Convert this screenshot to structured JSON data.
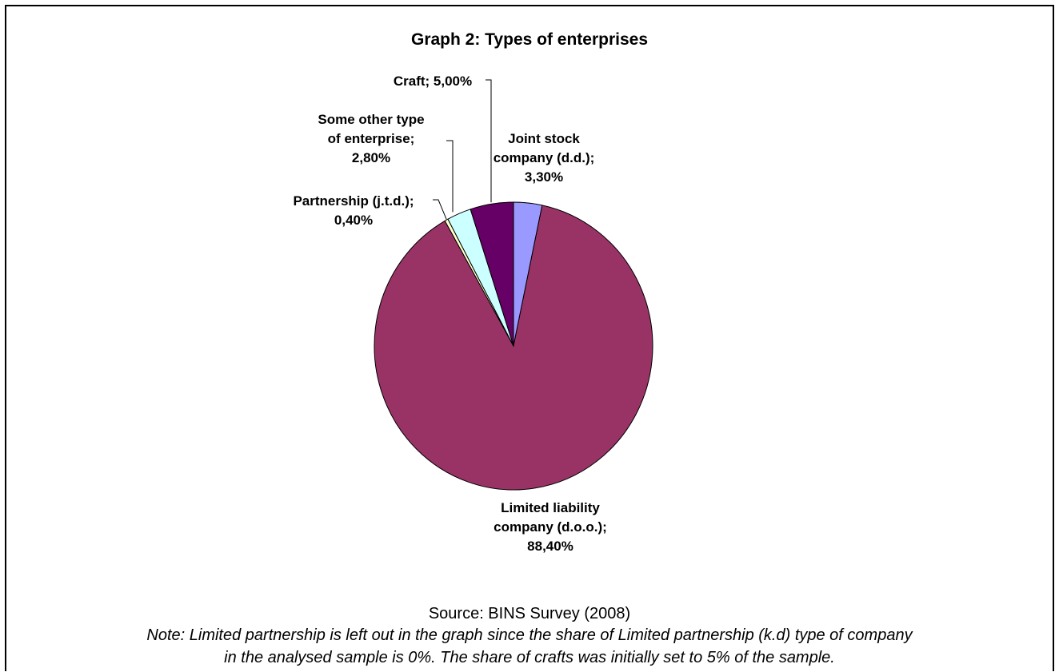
{
  "chart_data": {
    "type": "pie",
    "title": "Graph 2: Types of enterprises",
    "slices": [
      {
        "label": "Joint stock company (d.d.)",
        "value": 3.3,
        "text": "Joint stock\ncompany (d.d.);\n3,30%",
        "color": "#9999ff"
      },
      {
        "label": "Limited liability company (d.o.o.)",
        "value": 88.4,
        "text": "Limited liability\ncompany (d.o.o.);\n88,40%",
        "color": "#993366"
      },
      {
        "label": "Partnership (j.t.d.)",
        "value": 0.4,
        "text": "Partnership (j.t.d.);\n0,40%",
        "color": "#ffffcc"
      },
      {
        "label": "Some other type of enterprise",
        "value": 2.8,
        "text": "Some other type\nof enterprise;\n2,80%",
        "color": "#ccffff"
      },
      {
        "label": "Craft",
        "value": 5.0,
        "text": "Craft; 5,00%",
        "color": "#660066"
      }
    ]
  },
  "source": "Source: BINS Survey (2008)",
  "note_line1": "Note: Limited partnership is left out in the graph since the share of Limited partnership (k.d) type of company",
  "note_line2": "in the analysed sample is 0%. The share of crafts was initially set to 5% of the sample."
}
